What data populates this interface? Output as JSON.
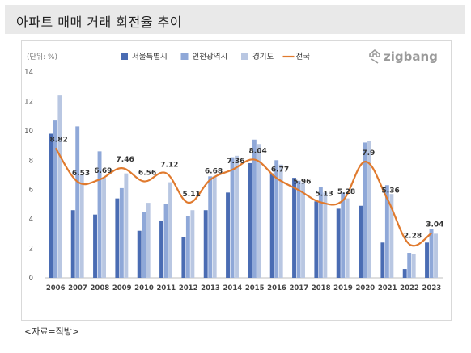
{
  "header": {
    "title": "아파트 매매 거래 회전율 추이"
  },
  "source": "<자료=직방>",
  "logo": {
    "text": "zigbang",
    "icon": "zigbang-logo-icon"
  },
  "colors": {
    "seoul": "#4a6cb3",
    "incheon": "#8fa8d8",
    "gyeonggi": "#b9c7e2",
    "national": "#e07a2e",
    "logo": "#9a9a9a"
  },
  "chart_data": {
    "type": "bar",
    "unit_label": "(단위: %)",
    "categories": [
      "2006",
      "2007",
      "2008",
      "2009",
      "2010",
      "2011",
      "2012",
      "2013",
      "2014",
      "2015",
      "2016",
      "2017",
      "2018",
      "2019",
      "2020",
      "2021",
      "2022",
      "2023"
    ],
    "ylim": [
      0,
      14
    ],
    "yticks": [
      0,
      2,
      4,
      6,
      8,
      10,
      12,
      14
    ],
    "grid": false,
    "legend_position": "top",
    "series": [
      {
        "name": "서울특별시",
        "type": "bar",
        "values": [
          9.8,
          4.6,
          4.3,
          5.4,
          3.2,
          3.9,
          2.8,
          4.6,
          5.8,
          7.8,
          7.1,
          6.8,
          5.2,
          4.7,
          4.9,
          2.4,
          0.6,
          2.4
        ]
      },
      {
        "name": "인천광역시",
        "type": "bar",
        "values": [
          10.7,
          10.3,
          8.6,
          6.1,
          4.5,
          5.0,
          4.2,
          6.9,
          8.2,
          9.4,
          8.0,
          6.6,
          6.2,
          5.8,
          9.2,
          6.3,
          1.7,
          3.3
        ]
      },
      {
        "name": "경기도",
        "type": "bar",
        "values": [
          12.4,
          7.0,
          6.8,
          7.1,
          5.1,
          6.5,
          4.6,
          6.9,
          8.3,
          9.1,
          7.7,
          6.5,
          5.8,
          5.4,
          9.3,
          5.7,
          1.6,
          3.0
        ]
      },
      {
        "name": "전국",
        "type": "line",
        "values": [
          8.82,
          6.53,
          6.69,
          7.46,
          6.56,
          7.12,
          5.11,
          6.68,
          7.36,
          8.04,
          6.77,
          5.96,
          5.13,
          5.28,
          7.9,
          5.36,
          2.28,
          3.04
        ],
        "labels": [
          "8.82",
          "6.53",
          "6.69",
          "7.46",
          "6.56",
          "7.12",
          "5.11",
          "6.68",
          "7.36",
          "8.04",
          "6.77",
          "5.96",
          "5.13",
          "5.28",
          "7.9",
          "5.36",
          "2.28",
          "3.04"
        ]
      }
    ]
  }
}
